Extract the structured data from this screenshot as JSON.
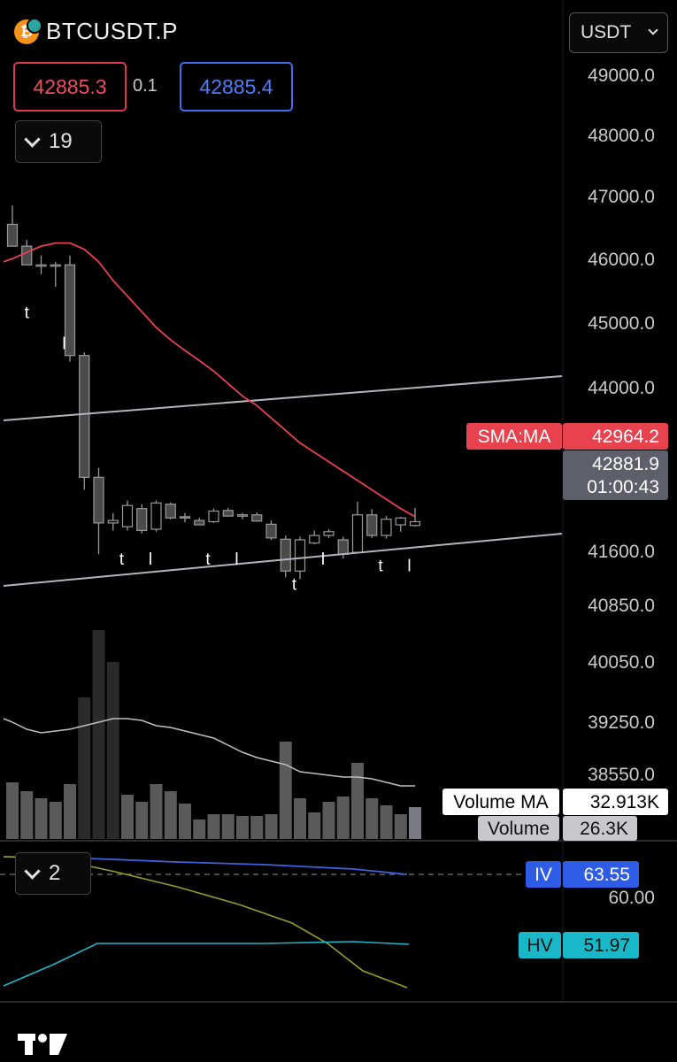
{
  "header": {
    "symbol": "BTCUSDT.P",
    "symbol_icon": "bitcoin-coin-icon",
    "bid": "42885.3",
    "spread": "0.1",
    "ask": "42885.4",
    "currency": "USDT"
  },
  "indicators_toggle": {
    "count": "19"
  },
  "lower_toggle": {
    "count": "2"
  },
  "colors": {
    "background": "#000000",
    "candle": "#4a4a4a",
    "sma_line": "#e8424f",
    "channel_line": "#b2b5be",
    "volume_bar": "#3a3a3a",
    "iv_line": "#3e63dd",
    "hv_line": "#1fb6c9",
    "third_line": "#9a9a30",
    "bid": "#ef4d5e",
    "ask": "#4e7ef8"
  },
  "chart_data": {
    "type": "candlestick",
    "y_axis_ticks": [
      "49000.0",
      "48000.0",
      "47000.0",
      "46000.0",
      "45000.0",
      "44000.0",
      "41600.0",
      "40850.0",
      "40050.0",
      "39250.0",
      "38550.0"
    ],
    "candles": [
      {
        "o": 46600,
        "h": 46900,
        "l": 46250,
        "c": 46250
      },
      {
        "o": 46250,
        "h": 46350,
        "l": 45950,
        "c": 45950
      },
      {
        "o": 45950,
        "h": 46100,
        "l": 45800,
        "c": 45950
      },
      {
        "o": 45950,
        "h": 46000,
        "l": 45600,
        "c": 45950
      },
      {
        "o": 45950,
        "h": 46100,
        "l": 44400,
        "c": 44500
      },
      {
        "o": 44500,
        "h": 44550,
        "l": 42350,
        "c": 42550
      },
      {
        "o": 42550,
        "h": 42700,
        "l": 41320,
        "c": 41820
      },
      {
        "o": 41820,
        "h": 41980,
        "l": 41700,
        "c": 41860
      },
      {
        "o": 41760,
        "h": 42180,
        "l": 41700,
        "c": 42100
      },
      {
        "o": 42050,
        "h": 42120,
        "l": 41650,
        "c": 41700
      },
      {
        "o": 41720,
        "h": 42180,
        "l": 41680,
        "c": 42140
      },
      {
        "o": 42120,
        "h": 42150,
        "l": 41880,
        "c": 41900
      },
      {
        "o": 41920,
        "h": 41980,
        "l": 41830,
        "c": 41900
      },
      {
        "o": 41860,
        "h": 41900,
        "l": 41800,
        "c": 41790
      },
      {
        "o": 41840,
        "h": 42050,
        "l": 41820,
        "c": 42010
      },
      {
        "o": 42020,
        "h": 42060,
        "l": 41950,
        "c": 41930
      },
      {
        "o": 41930,
        "h": 41980,
        "l": 41880,
        "c": 41950
      },
      {
        "o": 41950,
        "h": 41990,
        "l": 41890,
        "c": 41850
      },
      {
        "o": 41800,
        "h": 41860,
        "l": 41550,
        "c": 41580
      },
      {
        "o": 41560,
        "h": 41620,
        "l": 40950,
        "c": 41050
      },
      {
        "o": 41050,
        "h": 41600,
        "l": 40920,
        "c": 41550
      },
      {
        "o": 41500,
        "h": 41700,
        "l": 41480,
        "c": 41620
      },
      {
        "o": 41620,
        "h": 41720,
        "l": 41580,
        "c": 41680
      },
      {
        "o": 41550,
        "h": 41600,
        "l": 41250,
        "c": 41320
      },
      {
        "o": 41350,
        "h": 42160,
        "l": 41330,
        "c": 41950
      },
      {
        "o": 41950,
        "h": 42040,
        "l": 41580,
        "c": 41620
      },
      {
        "o": 41620,
        "h": 41930,
        "l": 41570,
        "c": 41880
      },
      {
        "o": 41790,
        "h": 41920,
        "l": 41680,
        "c": 41900
      },
      {
        "o": 41780,
        "h": 42060,
        "l": 41760,
        "c": 41840
      }
    ],
    "sma": {
      "label": "SMA:MA",
      "value": "42964.2",
      "points": [
        46050,
        46150,
        46250,
        46300,
        46300,
        46200,
        46000,
        45700,
        45450,
        45200,
        44950,
        44750,
        44580,
        44420,
        44250,
        44050,
        43850,
        43700,
        43500,
        43300,
        43100,
        42950,
        42800,
        42650,
        42500,
        42350,
        42200,
        42050,
        41920
      ]
    },
    "last_price": {
      "value": "42881.9",
      "countdown": "01:00:43"
    },
    "volume": {
      "label": "Volume",
      "value": "26.3K",
      "ma_label": "Volume MA",
      "ma_value": "32.913K",
      "bars": [
        32,
        27,
        23,
        21,
        31,
        80,
        118,
        100,
        25,
        21,
        31,
        27,
        20,
        11,
        14,
        14,
        13,
        13,
        14,
        55,
        23,
        15,
        21,
        24,
        43,
        23,
        19,
        14,
        18
      ],
      "ma": [
        66,
        62,
        60,
        61,
        62,
        64,
        66,
        68,
        68,
        67,
        64,
        63,
        61,
        59,
        57,
        53,
        49,
        46,
        44,
        42,
        38,
        37,
        36,
        35,
        35,
        34,
        32,
        30,
        30
      ]
    },
    "iv": {
      "label": "IV",
      "value": "63.55"
    },
    "hv": {
      "label": "HV",
      "value": "51.97"
    },
    "lower_axis_tick": "60.00",
    "annotations": [
      {
        "text": "t",
        "i": 1,
        "price": 45100
      },
      {
        "text": "l",
        "i": 3.6,
        "price": 44600
      },
      {
        "text": "t",
        "i": 7.6,
        "price": 41150
      },
      {
        "text": "l",
        "i": 9.6,
        "price": 41150
      },
      {
        "text": "t",
        "i": 13.6,
        "price": 41150
      },
      {
        "text": "l",
        "i": 15.6,
        "price": 41150
      },
      {
        "text": "l",
        "i": 21.6,
        "price": 41150
      },
      {
        "text": "t",
        "i": 25.6,
        "price": 41050
      },
      {
        "text": "l",
        "i": 27.6,
        "price": 41050
      },
      {
        "text": "t",
        "i": 19.6,
        "price": 40750
      }
    ]
  }
}
